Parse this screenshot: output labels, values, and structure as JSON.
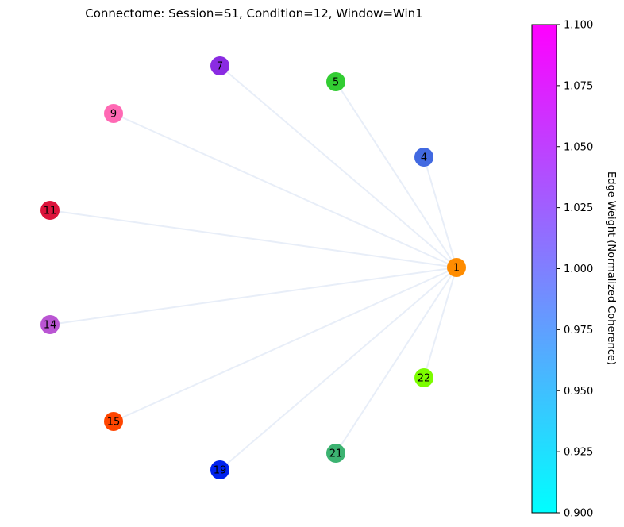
{
  "title": "Connectome: Session=S1, Condition=12, Window=Win1",
  "colorbar": {
    "label": "Edge Weight (Normalized Coherence)",
    "min": 0.9,
    "max": 1.1,
    "ticks": [
      "0.900",
      "0.925",
      "0.950",
      "0.975",
      "1.000",
      "1.025",
      "1.050",
      "1.075",
      "1.100"
    ],
    "colormap": "cool",
    "color_low": "#00ffff",
    "color_high": "#ff00ff"
  },
  "nodes": [
    {
      "id": "1",
      "color": "#ff8c00"
    },
    {
      "id": "4",
      "color": "#4169e1"
    },
    {
      "id": "5",
      "color": "#32cd32"
    },
    {
      "id": "7",
      "color": "#8a2be2"
    },
    {
      "id": "9",
      "color": "#ff69b4"
    },
    {
      "id": "11",
      "color": "#dc143c"
    },
    {
      "id": "14",
      "color": "#ba55d3"
    },
    {
      "id": "15",
      "color": "#ff4500"
    },
    {
      "id": "19",
      "color": "#0022ee"
    },
    {
      "id": "21",
      "color": "#3cb371"
    },
    {
      "id": "22",
      "color": "#7cfc00"
    }
  ],
  "edges": [
    [
      "1",
      "4"
    ],
    [
      "1",
      "5"
    ],
    [
      "1",
      "7"
    ],
    [
      "1",
      "9"
    ],
    [
      "1",
      "11"
    ],
    [
      "1",
      "14"
    ],
    [
      "1",
      "15"
    ],
    [
      "1",
      "19"
    ],
    [
      "1",
      "21"
    ],
    [
      "1",
      "22"
    ]
  ],
  "edge_color": "#e8eef8"
}
